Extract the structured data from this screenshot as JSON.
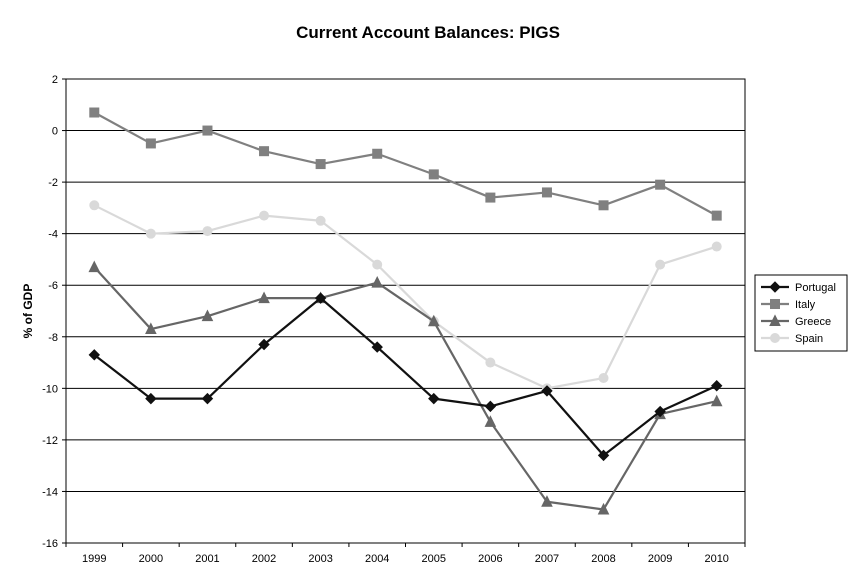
{
  "chart_data": {
    "type": "line",
    "title": "Current Account Balances: PIGS",
    "xlabel": "",
    "ylabel": "% of GDP",
    "ylim": [
      -16,
      2
    ],
    "yticks": [
      2,
      0,
      -2,
      -4,
      -6,
      -8,
      -10,
      -12,
      -14,
      -16
    ],
    "grid": "horizontal",
    "legend": "right",
    "categories": [
      "1999",
      "2000",
      "2001",
      "2002",
      "2003",
      "2004",
      "2005",
      "2006",
      "2007",
      "2008",
      "2009",
      "2010"
    ],
    "series": [
      {
        "name": "Portugal",
        "color": "#111111",
        "marker": "diamond",
        "values": [
          -8.7,
          -10.4,
          -10.4,
          -8.3,
          -6.5,
          -8.4,
          -10.4,
          -10.7,
          -10.1,
          -12.6,
          -10.9,
          -9.9
        ]
      },
      {
        "name": "Italy",
        "color": "#808080",
        "marker": "square",
        "values": [
          0.7,
          -0.5,
          0.0,
          -0.8,
          -1.3,
          -0.9,
          -1.7,
          -2.6,
          -2.4,
          -2.9,
          -2.1,
          -3.3
        ]
      },
      {
        "name": "Greece",
        "color": "#666666",
        "marker": "triangle",
        "values": [
          -5.3,
          -7.7,
          -7.2,
          -6.5,
          -6.5,
          -5.9,
          -7.4,
          -11.3,
          -14.4,
          -14.7,
          -11.0,
          -10.5
        ]
      },
      {
        "name": "Spain",
        "color": "#d9d9d9",
        "marker": "circle",
        "values": [
          -2.9,
          -4.0,
          -3.9,
          -3.3,
          -3.5,
          -5.2,
          -7.4,
          -9.0,
          -10.0,
          -9.6,
          -5.2,
          -4.5
        ]
      }
    ]
  }
}
